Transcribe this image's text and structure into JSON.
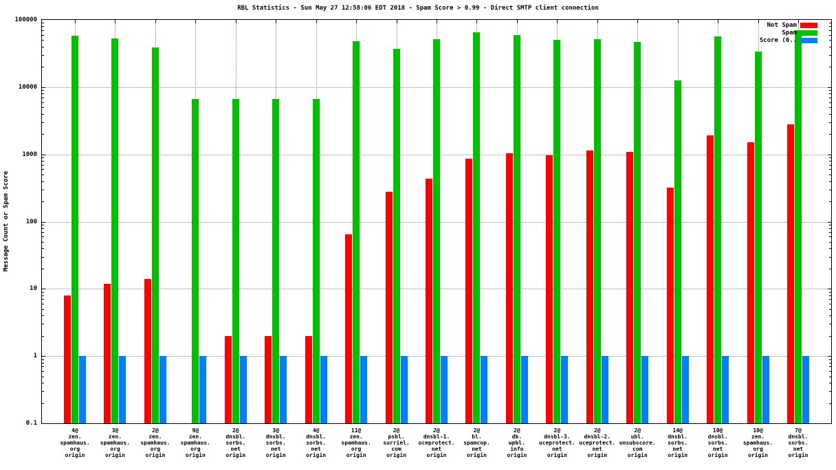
{
  "background": "#ffffff",
  "chart_data": {
    "type": "bar",
    "title": "RBL Statistics - Sun May 27 12:58:06 EDT 2018 - Spam Score > 0.99 - Direct SMTP client connection",
    "ylabel": "Message Count or Spam Score",
    "xlabel": "",
    "y_scale": "log",
    "ylim": [
      0.1,
      100000
    ],
    "y_ticks": [
      "0.1",
      "1",
      "10",
      "100",
      "1000",
      "10000",
      "100000"
    ],
    "grid": true,
    "legend_position": "top-right",
    "categories": [
      [
        "4@",
        "zen.",
        "spamhaus.",
        "org",
        "origin"
      ],
      [
        "3@",
        "zen.",
        "spamhaus.",
        "org",
        "origin"
      ],
      [
        "2@",
        "zen.",
        "spamhaus.",
        "org",
        "origin"
      ],
      [
        "9@",
        "zen.",
        "spamhaus.",
        "org",
        "origin"
      ],
      [
        "2@",
        "dnsbl.",
        "sorbs.",
        "net",
        "origin"
      ],
      [
        "3@",
        "dnsbl.",
        "sorbs.",
        "net",
        "origin"
      ],
      [
        "4@",
        "dnsbl.",
        "sorbs.",
        "net",
        "origin"
      ],
      [
        "11@",
        "zen.",
        "spamhaus.",
        "org",
        "origin"
      ],
      [
        "2@",
        "psbl.",
        "surriel.",
        "com",
        "origin"
      ],
      [
        "2@",
        "dnsbl-1.",
        "uceprotect.",
        "net",
        "origin"
      ],
      [
        "2@",
        "bl.",
        "spamcop.",
        "net",
        "origin"
      ],
      [
        "2@",
        "db.",
        "wpbl.",
        "info",
        "origin"
      ],
      [
        "2@",
        "dnsbl-3.",
        "uceprotect.",
        "net",
        "origin"
      ],
      [
        "2@",
        "dnsbl-2.",
        "uceprotect.",
        "net",
        "origin"
      ],
      [
        "2@",
        "ubl.",
        "unsubscore.",
        "com",
        "origin"
      ],
      [
        "14@",
        "dnsbl.",
        "sorbs.",
        "net",
        "origin"
      ],
      [
        "10@",
        "dnsbl.",
        "sorbs.",
        "net",
        "origin"
      ],
      [
        "10@",
        "zen.",
        "spamhaus.",
        "org",
        "origin"
      ],
      [
        "7@",
        "dnsbl.",
        "sorbs.",
        "net",
        "origin"
      ]
    ],
    "series": [
      {
        "name": "Not Spam",
        "color": "#ff0000",
        "values": [
          8,
          12,
          14,
          null,
          2,
          2,
          2,
          65,
          280,
          440,
          860,
          1050,
          980,
          1150,
          1100,
          320,
          1900,
          1500,
          2800
        ]
      },
      {
        "name": "Spam",
        "color": "#00c000",
        "values": [
          58000,
          53000,
          39000,
          6700,
          6700,
          6700,
          6700,
          48000,
          37000,
          52000,
          65000,
          60000,
          50000,
          52000,
          47000,
          12500,
          57000,
          34000,
          70000
        ]
      },
      {
        "name": "Score (0..",
        "color": "#0080ff",
        "values": [
          1,
          1,
          1,
          1,
          1,
          1,
          1,
          1,
          1,
          1,
          1,
          1,
          1,
          1,
          1,
          1,
          1,
          1,
          1
        ]
      }
    ]
  }
}
